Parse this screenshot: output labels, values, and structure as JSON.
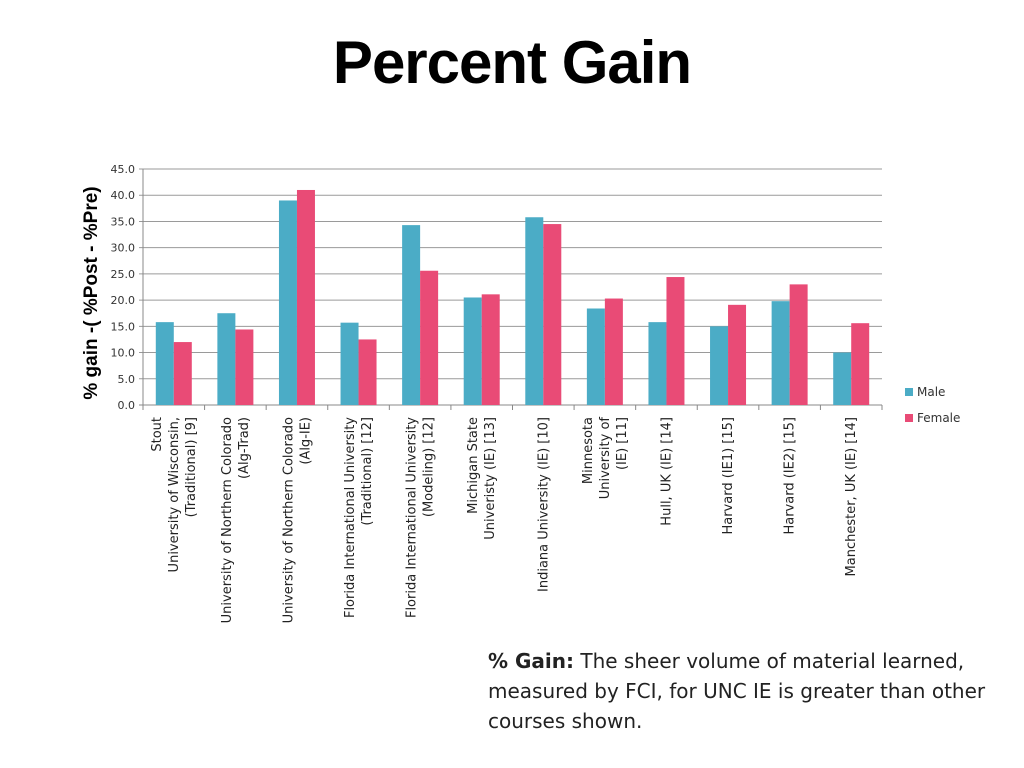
{
  "slide": {
    "title": "Percent Gain",
    "caption_bold": "% Gain:",
    "caption_text": " The sheer volume of material learned, measured by FCI, for UNC IE is greater than other courses shown."
  },
  "chart_data": {
    "type": "bar",
    "title": "",
    "xlabel": "",
    "ylabel": "% gain -( %Post - %Pre)",
    "ylim": [
      0,
      45
    ],
    "yticks": [
      "0.0",
      "5.0",
      "10.0",
      "15.0",
      "20.0",
      "25.0",
      "30.0",
      "35.0",
      "40.0",
      "45.0"
    ],
    "grid": true,
    "legend_position": "right",
    "categories": [
      [
        "Stout",
        "University of Wisconsin,",
        "(Traditional) [9]"
      ],
      [
        "University of Northern Colorado",
        "(Alg-Trad)"
      ],
      [
        "University of Northern Colorado",
        "(Alg-IE)"
      ],
      [
        "Florida International University",
        "(Traditional) [12]"
      ],
      [
        "Florida International University",
        "(Modeling) [12]"
      ],
      [
        "Michigan State",
        "Univeristy (IE) [13]"
      ],
      [
        "Indiana University (IE) [10]"
      ],
      [
        "Minnesota",
        "University of",
        "(IE) [11]"
      ],
      [
        "Hull, UK (IE) [14]"
      ],
      [
        "Harvard (IE1) [15]"
      ],
      [
        "Harvard (IE2) [15]"
      ],
      [
        "Manchester, UK (IE) [14]"
      ]
    ],
    "series": [
      {
        "name": "Male",
        "color": "#4bacc6",
        "values": [
          15.8,
          17.5,
          39.0,
          15.7,
          34.3,
          20.5,
          35.8,
          18.4,
          15.8,
          15.0,
          19.8,
          10.0
        ]
      },
      {
        "name": "Female",
        "color": "#e94b76",
        "values": [
          12.0,
          14.4,
          41.0,
          12.5,
          25.6,
          21.1,
          34.5,
          20.3,
          24.4,
          19.1,
          23.0,
          15.6
        ]
      }
    ]
  }
}
